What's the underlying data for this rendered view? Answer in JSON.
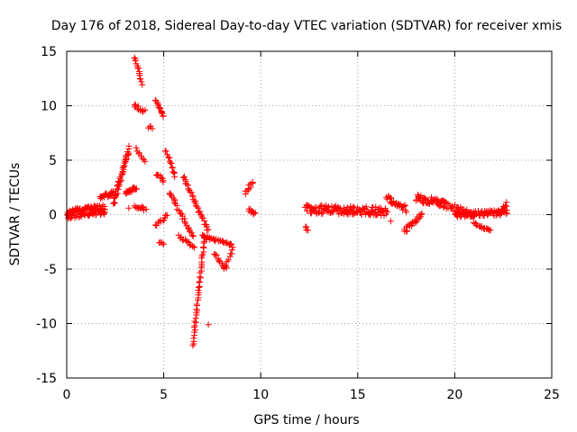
{
  "chart_data": {
    "type": "scatter",
    "title": "Day 176 of 2018, Sidereal Day-to-day VTEC variation (SDTVAR) for receiver xmis",
    "xlabel": "GPS time / hours",
    "ylabel": "SDTVAR / TECUs",
    "xlim": [
      0,
      25
    ],
    "ylim": [
      -15,
      15
    ],
    "xticks": [
      0,
      5,
      10,
      15,
      20,
      25
    ],
    "yticks": [
      -15,
      -10,
      -5,
      0,
      5,
      10,
      15
    ],
    "grid": true,
    "marker": "+",
    "color": "#ff0000",
    "series": [
      {
        "name": "SDTVAR",
        "segments": [
          {
            "x0": 0.0,
            "x1": 2.0,
            "y0": 0.0,
            "y1": 0.5,
            "n": 130,
            "jitter": 0.9
          },
          {
            "x0": 1.7,
            "x1": 2.4,
            "y0": 1.5,
            "y1": 2.0,
            "n": 20,
            "jitter": 0.4
          },
          {
            "x0": 2.4,
            "x1": 3.2,
            "y0": 1.0,
            "y1": 6.0,
            "n": 50,
            "jitter": 0.6
          },
          {
            "x0": 3.0,
            "x1": 3.6,
            "y0": 2.0,
            "y1": 2.5,
            "n": 20,
            "jitter": 0.4
          },
          {
            "x0": 3.5,
            "x1": 3.9,
            "y0": 14.5,
            "y1": 12.0,
            "n": 14,
            "jitter": 0.2
          },
          {
            "x0": 3.5,
            "x1": 4.0,
            "y0": 10.0,
            "y1": 9.5,
            "n": 12,
            "jitter": 0.3
          },
          {
            "x0": 3.6,
            "x1": 4.0,
            "y0": 6.0,
            "y1": 5.0,
            "n": 8,
            "jitter": 0.3
          },
          {
            "x0": 3.5,
            "x1": 4.0,
            "y0": 0.8,
            "y1": 0.5,
            "n": 12,
            "jitter": 0.3
          },
          {
            "x0": 4.2,
            "x1": 4.4,
            "y0": 8.0,
            "y1": 8.0,
            "n": 4,
            "jitter": 0.3
          },
          {
            "x0": 4.6,
            "x1": 5.0,
            "y0": 10.5,
            "y1": 9.0,
            "n": 14,
            "jitter": 0.2
          },
          {
            "x0": 4.6,
            "x1": 5.0,
            "y0": 3.8,
            "y1": 3.0,
            "n": 10,
            "jitter": 0.3
          },
          {
            "x0": 4.6,
            "x1": 5.2,
            "y0": -1.0,
            "y1": 0.0,
            "n": 12,
            "jitter": 0.3
          },
          {
            "x0": 4.8,
            "x1": 5.0,
            "y0": -2.5,
            "y1": -2.8,
            "n": 5,
            "jitter": 0.2
          },
          {
            "x0": 5.1,
            "x1": 5.6,
            "y0": 6.0,
            "y1": 3.5,
            "n": 14,
            "jitter": 0.3
          },
          {
            "x0": 5.3,
            "x1": 6.5,
            "y0": 2.0,
            "y1": -2.0,
            "n": 30,
            "jitter": 0.3
          },
          {
            "x0": 5.8,
            "x1": 6.6,
            "y0": -2.0,
            "y1": -3.0,
            "n": 14,
            "jitter": 0.3
          },
          {
            "x0": 6.0,
            "x1": 7.3,
            "y0": 3.5,
            "y1": -1.5,
            "n": 35,
            "jitter": 0.3
          },
          {
            "x0": 6.5,
            "x1": 7.1,
            "y0": -12.0,
            "y1": -2.0,
            "n": 45,
            "jitter": 0.2
          },
          {
            "x0": 7.0,
            "x1": 8.0,
            "y0": -2.0,
            "y1": -2.5,
            "n": 20,
            "jitter": 0.3
          },
          {
            "x0": 8.0,
            "x1": 8.5,
            "y0": -2.5,
            "y1": -2.8,
            "n": 10,
            "jitter": 0.2
          },
          {
            "x0": 7.6,
            "x1": 8.2,
            "y0": -3.5,
            "y1": -5.0,
            "n": 14,
            "jitter": 0.3
          },
          {
            "x0": 8.1,
            "x1": 8.6,
            "y0": -5.0,
            "y1": -3.0,
            "n": 10,
            "jitter": 0.3
          },
          {
            "x0": 9.2,
            "x1": 9.6,
            "y0": 2.0,
            "y1": 3.0,
            "n": 10,
            "jitter": 0.3
          },
          {
            "x0": 9.4,
            "x1": 9.7,
            "y0": 0.5,
            "y1": 0.0,
            "n": 10,
            "jitter": 0.4
          },
          {
            "x0": 12.3,
            "x1": 12.4,
            "y0": -1.2,
            "y1": -1.4,
            "n": 4,
            "jitter": 0.2
          },
          {
            "x0": 12.3,
            "x1": 16.5,
            "y0": 0.5,
            "y1": 0.3,
            "n": 140,
            "jitter": 0.8
          },
          {
            "x0": 16.5,
            "x1": 17.5,
            "y0": 1.5,
            "y1": 0.5,
            "n": 30,
            "jitter": 0.6
          },
          {
            "x0": 17.4,
            "x1": 18.3,
            "y0": -1.5,
            "y1": 0.0,
            "n": 25,
            "jitter": 0.4
          },
          {
            "x0": 18.0,
            "x1": 19.5,
            "y0": 1.5,
            "y1": 1.0,
            "n": 50,
            "jitter": 0.7
          },
          {
            "x0": 19.3,
            "x1": 21.0,
            "y0": 1.0,
            "y1": 0.0,
            "n": 40,
            "jitter": 0.6
          },
          {
            "x0": 20.0,
            "x1": 22.7,
            "y0": 0.0,
            "y1": 0.2,
            "n": 90,
            "jitter": 0.5
          },
          {
            "x0": 21.0,
            "x1": 21.8,
            "y0": -0.8,
            "y1": -1.5,
            "n": 18,
            "jitter": 0.2
          },
          {
            "x0": 22.2,
            "x1": 22.7,
            "y0": 0.0,
            "y1": 1.0,
            "n": 12,
            "jitter": 0.3
          }
        ],
        "points": [
          [
            7.3,
            -10.1
          ],
          [
            16.7,
            -0.6
          ],
          [
            3.2,
            0.6
          ],
          [
            7.2,
            -2.3
          ],
          [
            4.1,
            0.5
          ],
          [
            14.6,
            0.1
          ]
        ]
      }
    ]
  }
}
